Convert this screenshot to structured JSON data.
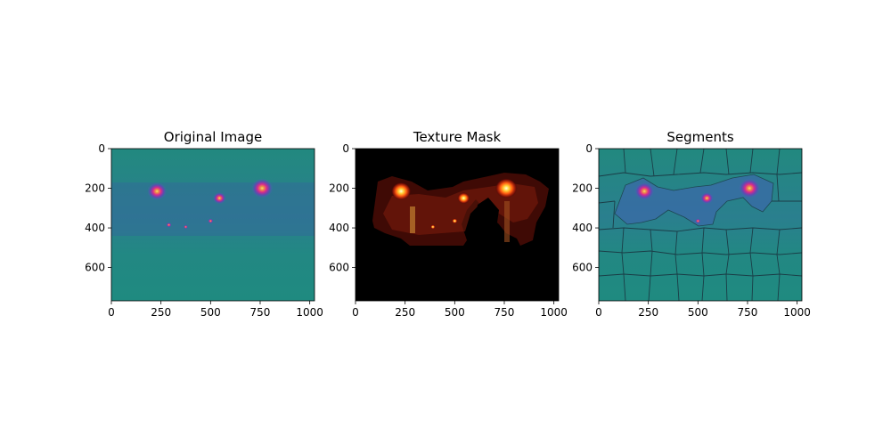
{
  "figure": {
    "panels": [
      {
        "title": "Original Image",
        "kind": "original"
      },
      {
        "title": "Texture Mask",
        "kind": "mask"
      },
      {
        "title": "Segments",
        "kind": "segments"
      }
    ]
  },
  "chart_data": [
    {
      "type": "heatmap",
      "title": "Original Image",
      "xlabel": "",
      "ylabel": "",
      "xlim": [
        0,
        1024
      ],
      "ylim": [
        768,
        0
      ],
      "xticks": [
        0,
        250,
        500,
        750,
        1000
      ],
      "yticks": [
        0,
        200,
        400,
        600
      ],
      "colormap": "plasma-like (teal background, magenta/orange highlights)",
      "background_color": "#1e8a85",
      "bright_spots": [
        {
          "x": 230,
          "y": 215,
          "size": 45
        },
        {
          "x": 545,
          "y": 250,
          "size": 30
        },
        {
          "x": 760,
          "y": 200,
          "size": 50
        },
        {
          "x": 500,
          "y": 365,
          "size": 12
        },
        {
          "x": 290,
          "y": 385,
          "size": 12
        },
        {
          "x": 375,
          "y": 395,
          "size": 10
        }
      ]
    },
    {
      "type": "heatmap",
      "title": "Texture Mask",
      "xlabel": "",
      "ylabel": "",
      "xlim": [
        0,
        1024
      ],
      "ylim": [
        768,
        0
      ],
      "xticks": [
        0,
        250,
        500,
        750,
        1000
      ],
      "yticks": [
        0,
        200,
        400,
        600
      ],
      "colormap": "hot (black background, red/yellow highlights)",
      "background_color": "#000000",
      "bright_spots": [
        {
          "x": 230,
          "y": 215,
          "size": 45
        },
        {
          "x": 545,
          "y": 250,
          "size": 28
        },
        {
          "x": 760,
          "y": 200,
          "size": 50
        },
        {
          "x": 500,
          "y": 365,
          "size": 12
        },
        {
          "x": 390,
          "y": 395,
          "size": 10
        }
      ]
    },
    {
      "type": "heatmap",
      "title": "Segments",
      "xlabel": "",
      "ylabel": "",
      "xlim": [
        0,
        1024
      ],
      "ylim": [
        768,
        0
      ],
      "xticks": [
        0,
        250,
        500,
        750,
        1000
      ],
      "yticks": [
        0,
        200,
        400,
        600
      ],
      "colormap": "plasma-like with superpixel boundaries",
      "background_color": "#1e8a85",
      "boundary_color": "#1a3540",
      "bright_spots": [
        {
          "x": 230,
          "y": 215,
          "size": 45
        },
        {
          "x": 545,
          "y": 250,
          "size": 30
        },
        {
          "x": 760,
          "y": 200,
          "size": 50
        },
        {
          "x": 500,
          "y": 365,
          "size": 12
        }
      ]
    }
  ]
}
